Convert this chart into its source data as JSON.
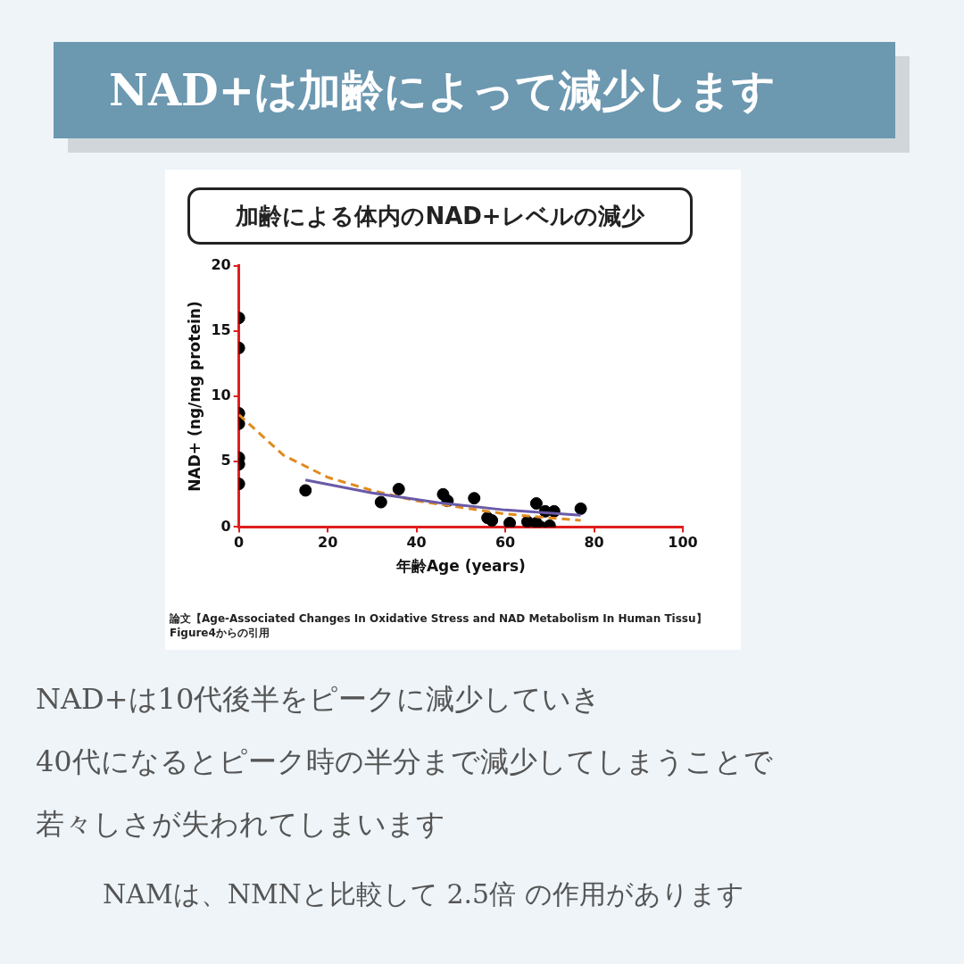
{
  "chart_data": {
    "type": "scatter",
    "title": "NAD+は加齢によって減少します",
    "subtitle": "加齢による体内のNAD+レベルの減少",
    "xlabel": "年齢Age (years)",
    "ylabel": "NAD+ (ng/mg protein)",
    "xlim": [
      0,
      100
    ],
    "xticks": [
      0,
      20,
      40,
      60,
      80,
      100
    ],
    "ylim": [
      0,
      20
    ],
    "yticks": [
      0,
      5,
      10,
      15,
      20
    ],
    "grid": false,
    "legend": false,
    "marker": "circle",
    "series": [
      {
        "color": "#000000",
        "x": [
          0,
          0,
          0,
          0,
          0,
          0,
          0,
          15,
          32,
          36,
          46,
          47,
          53,
          56,
          57,
          61,
          65,
          67,
          67,
          68,
          69,
          70,
          71,
          77
        ],
        "values": [
          16,
          13.7,
          8.7,
          7.9,
          5.3,
          4.8,
          3.3,
          2.8,
          1.9,
          2.9,
          2.5,
          2.0,
          2.2,
          0.7,
          0.5,
          0.3,
          0.4,
          1.8,
          0.3,
          0,
          1.2,
          0.1,
          1.2,
          1.4
        ]
      },
      {
        "type": "line",
        "color": "#e08a1e",
        "line_style": "dashed",
        "marker": "none",
        "x": [
          0,
          10,
          20,
          30,
          40,
          50,
          60,
          70,
          77
        ],
        "values": [
          8.6,
          5.5,
          3.8,
          2.8,
          2.0,
          1.5,
          1.0,
          0.7,
          0.5
        ]
      },
      {
        "type": "line",
        "color": "#6a5aa8",
        "line_style": "solid",
        "marker": "none",
        "x": [
          15,
          30,
          45,
          60,
          77
        ],
        "values": [
          3.6,
          2.6,
          1.85,
          1.3,
          0.9
        ]
      }
    ],
    "annotations": [
      "論文【Age-Associated Changes In Oxidative Stress and NAD Metabolism In Human Tissu】 Figure4からの引用",
      "NAD+は10代後半をピークに減少していき",
      "40代になるとピーク時の半分まで減少してしまうことで",
      "若々しさが失われてしまいます",
      "NAMは、NMNと比較して 2.5倍 の作用があります"
    ]
  }
}
